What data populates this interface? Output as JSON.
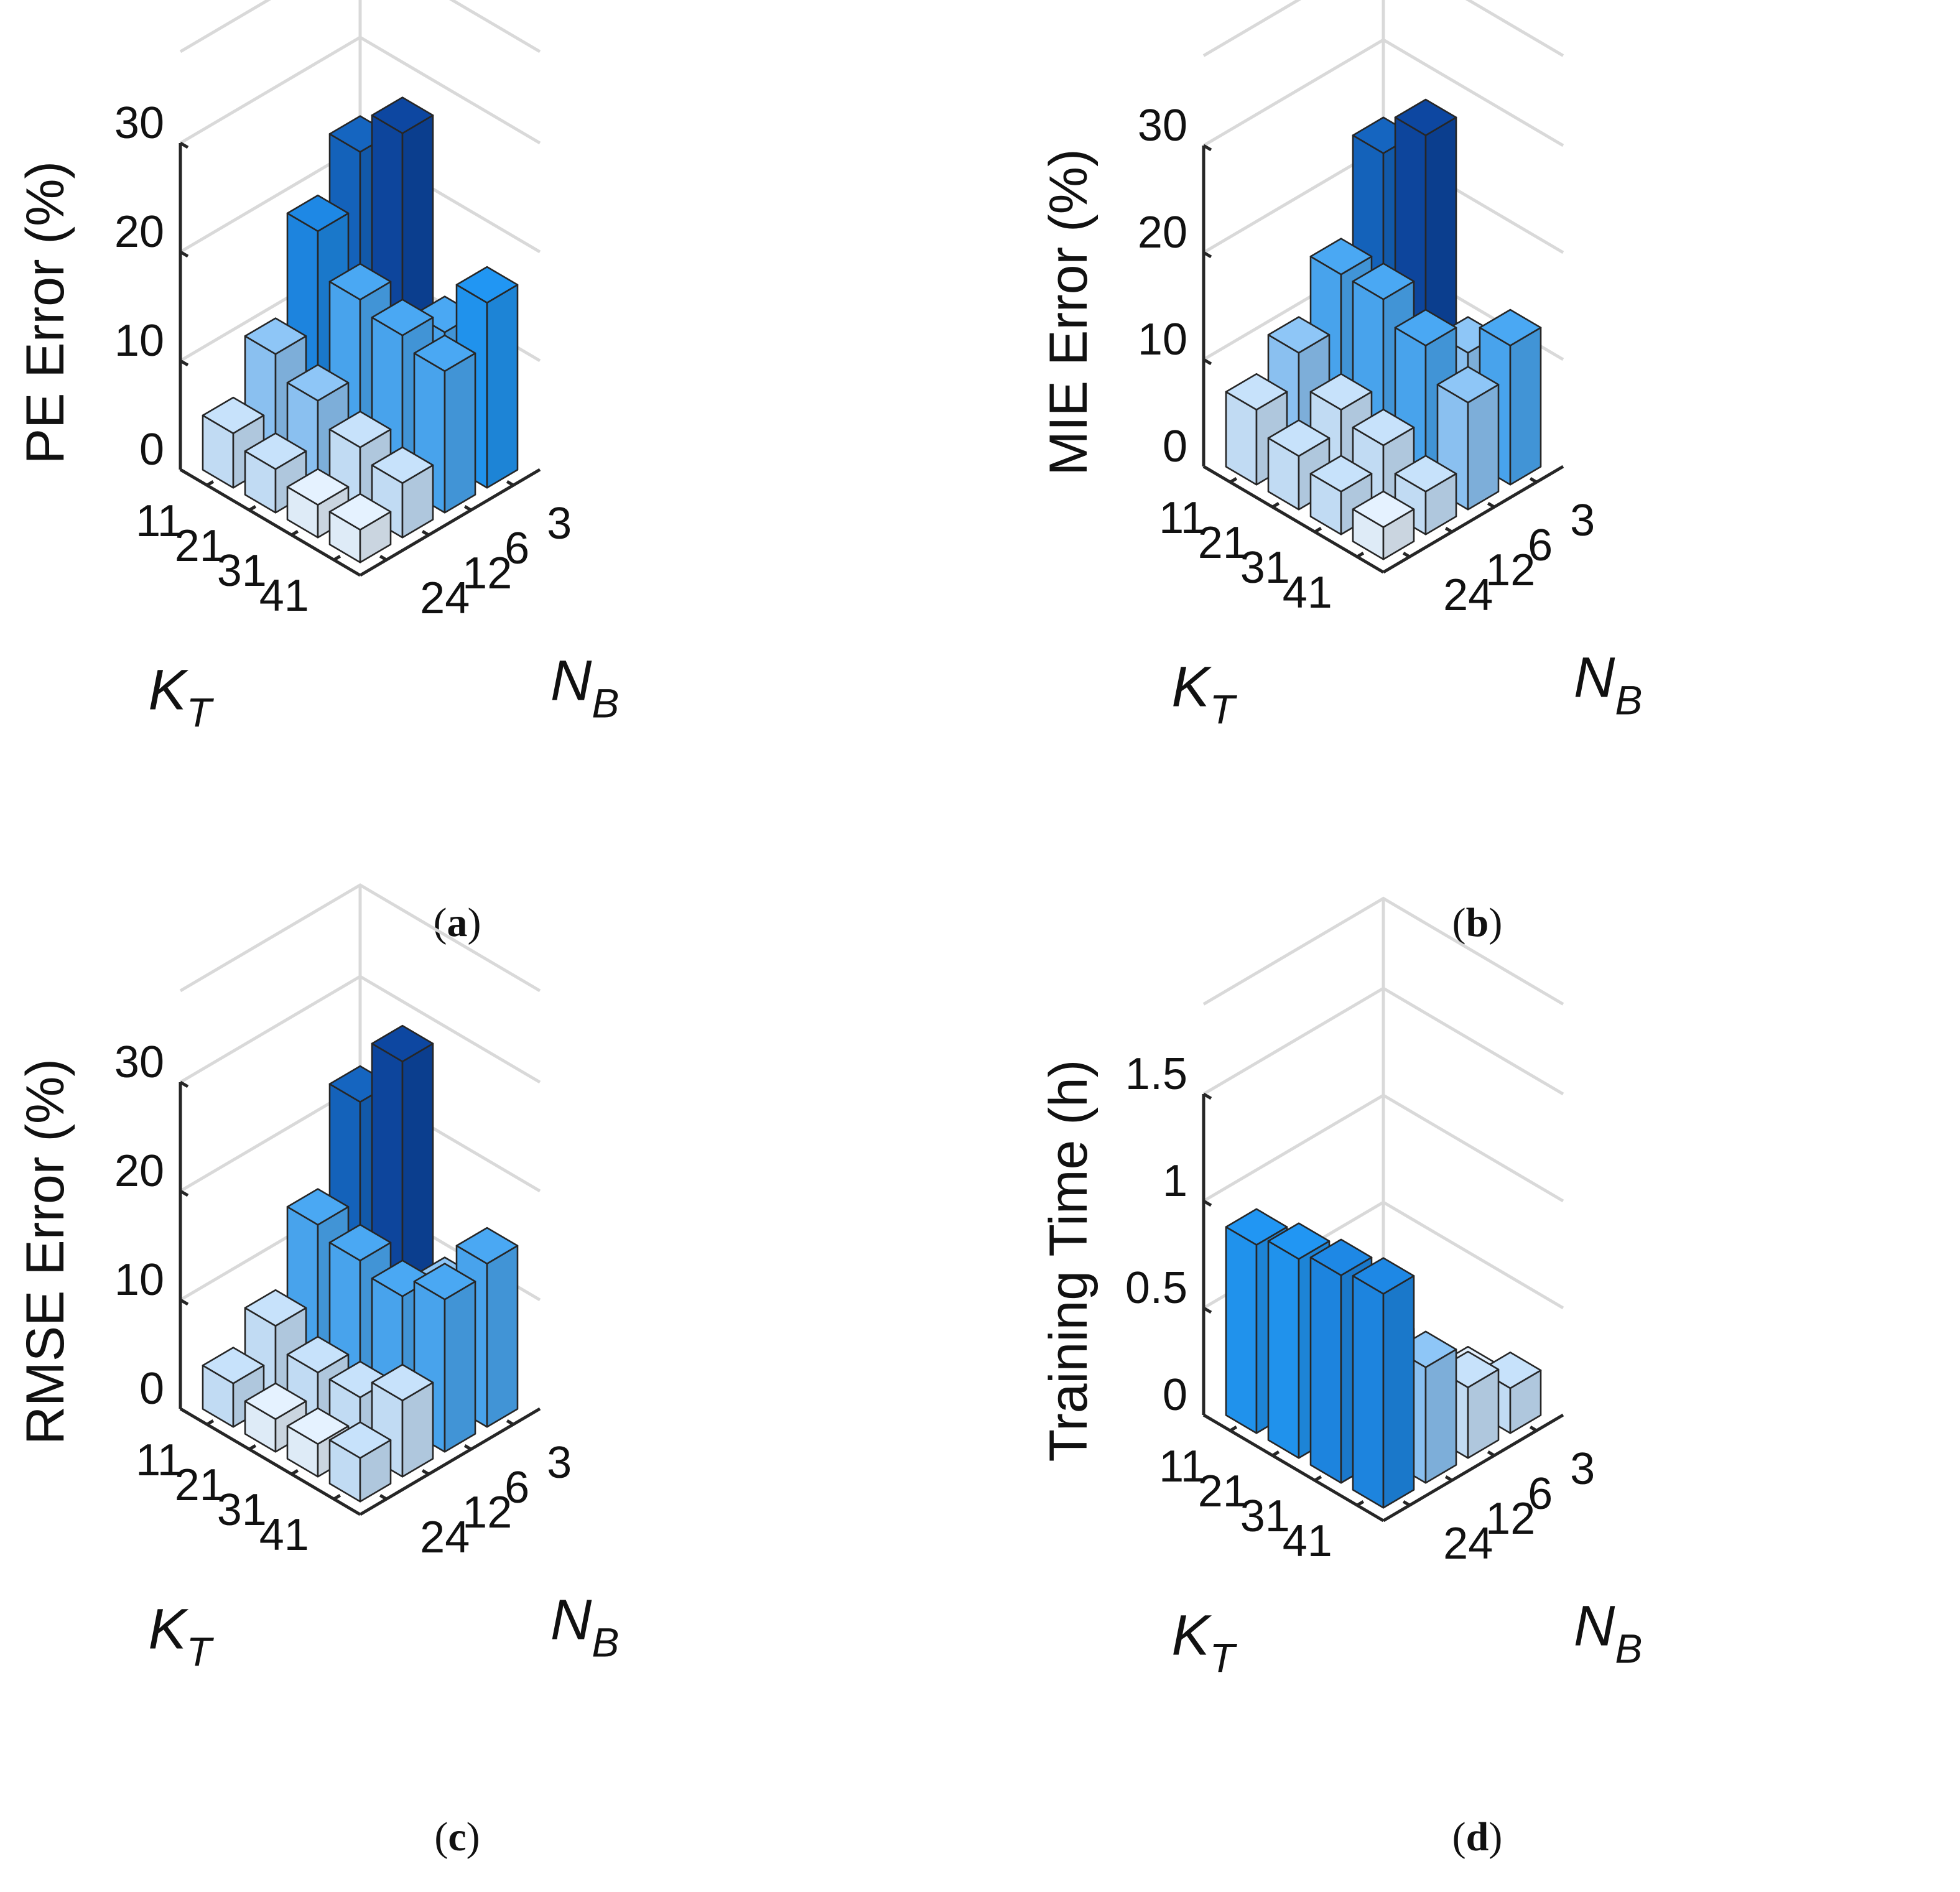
{
  "figure": {
    "panels": [
      {
        "id": "a",
        "caption": "(a)",
        "caption_letter": "a",
        "zlabel": "PE Error (%)",
        "x_var": "K",
        "x_sub": "T",
        "y_var": "N",
        "y_sub": "B"
      },
      {
        "id": "b",
        "caption": "(b)",
        "caption_letter": "b",
        "zlabel": "MIE Error (%)",
        "x_var": "K",
        "x_sub": "T",
        "y_var": "N",
        "y_sub": "B"
      },
      {
        "id": "c",
        "caption": "(c)",
        "caption_letter": "c",
        "zlabel": "RMSE Error (%)",
        "x_var": "K",
        "x_sub": "T",
        "y_var": "N",
        "y_sub": "B"
      },
      {
        "id": "d",
        "caption": "(d)",
        "caption_letter": "d",
        "zlabel": "Training Time (h)",
        "x_var": "K",
        "x_sub": "T",
        "y_var": "N",
        "y_sub": "B"
      }
    ]
  },
  "chart_data": [
    {
      "type": "bar3d",
      "title": "(a)",
      "zlabel": "PE Error (%)",
      "xlabel": "K_T",
      "ylabel": "N_B",
      "x_categories": [
        "11",
        "21",
        "31",
        "41"
      ],
      "y_categories": [
        "3",
        "6",
        "12",
        "24"
      ],
      "zticks": [
        "0",
        "10",
        "20",
        "30"
      ],
      "zlim": [
        0,
        30
      ],
      "values": [
        [
          24,
          19,
          10,
          5
        ],
        [
          28,
          15,
          8,
          4
        ],
        [
          12,
          14,
          6,
          3
        ],
        [
          17,
          13,
          5,
          3
        ]
      ],
      "colormap": [
        "#e5f2ff",
        "#c7e2fb",
        "#8ec6f7",
        "#4aa8f3",
        "#2196f3",
        "#1e88e5",
        "#1565c0",
        "#0d47a1"
      ]
    },
    {
      "type": "bar3d",
      "title": "(b)",
      "zlabel": "MIE Error (%)",
      "xlabel": "K_T",
      "ylabel": "N_B",
      "x_categories": [
        "11",
        "21",
        "31",
        "41"
      ],
      "y_categories": [
        "3",
        "6",
        "12",
        "24"
      ],
      "zticks": [
        "0",
        "10",
        "20",
        "30"
      ],
      "zlim": [
        0,
        30
      ],
      "values": [
        [
          24,
          15,
          10,
          7
        ],
        [
          28,
          15,
          7,
          5
        ],
        [
          10,
          13,
          6,
          4
        ],
        [
          13,
          10,
          4,
          3
        ]
      ],
      "colormap": [
        "#e5f2ff",
        "#c7e2fb",
        "#8ec6f7",
        "#4aa8f3",
        "#2196f3",
        "#1e88e5",
        "#1565c0",
        "#0d47a1"
      ]
    },
    {
      "type": "bar3d",
      "title": "(c)",
      "zlabel": "RMSE Error (%)",
      "xlabel": "K_T",
      "ylabel": "N_B",
      "x_categories": [
        "11",
        "21",
        "31",
        "41"
      ],
      "y_categories": [
        "3",
        "6",
        "12",
        "24"
      ],
      "zticks": [
        "0",
        "10",
        "20",
        "30"
      ],
      "zlim": [
        0,
        30
      ],
      "values": [
        [
          23,
          14,
          7,
          4
        ],
        [
          29,
          13,
          5,
          3
        ],
        [
          10,
          12,
          5,
          3
        ],
        [
          15,
          14,
          7,
          4
        ]
      ],
      "colormap": [
        "#e5f2ff",
        "#c7e2fb",
        "#8ec6f7",
        "#4aa8f3",
        "#2196f3",
        "#1e88e5",
        "#1565c0",
        "#0d47a1"
      ]
    },
    {
      "type": "bar3d",
      "title": "(d)",
      "zlabel": "Training Time (h)",
      "xlabel": "K_T",
      "ylabel": "N_B",
      "x_categories": [
        "11",
        "21",
        "31",
        "41"
      ],
      "y_categories": [
        "3",
        "6",
        "12",
        "24"
      ],
      "zticks": [
        "0",
        "0.5",
        "1",
        "1.5"
      ],
      "zlim": [
        0,
        1.5
      ],
      "values": [
        [
          0.04,
          0.06,
          0.11,
          0.88
        ],
        [
          0.06,
          0.13,
          0.35,
          0.93
        ],
        [
          0.12,
          0.27,
          0.52,
          0.97
        ],
        [
          0.21,
          0.33,
          0.54,
          1.0
        ]
      ],
      "colormap": [
        "#e5f2ff",
        "#c7e2fb",
        "#8ec6f7",
        "#4aa8f3",
        "#2196f3",
        "#1e88e5",
        "#1565c0",
        "#0d47a1"
      ]
    }
  ]
}
